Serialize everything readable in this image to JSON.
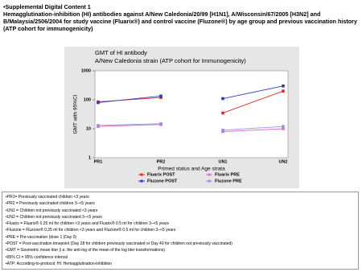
{
  "header": {
    "label": "•Supplemental Digital Content 1",
    "title": "Hemagglutination-inhibition (HI) antibodies against A/New Caledonia/20/99 [H1N1], A/Wisconsin/67/2005 [H3N2] and B/Malaysia/2506/2004 for study vaccine (Fluarix®) and control vaccine (Fluzone®) by age group and previous vaccination history (ATP cohort for immunogenicity)"
  },
  "chart_data": {
    "type": "line",
    "title": "GMT of HI antibody",
    "subtitle": "A/New Caledonia strain (ATP cohort for Immunogenicity)",
    "x_label": "Primed status and Age strata",
    "y_label": "GMT with 95%CI",
    "categories": [
      "PR1",
      "PR2",
      "UN1",
      "UN2"
    ],
    "log_scale": true,
    "ylim": [
      1,
      1000
    ],
    "yticks": [
      1,
      10,
      100,
      1000
    ],
    "series": [
      {
        "name": "Fluarix POST",
        "color": "#e02828",
        "values": [
          85,
          120,
          35,
          200
        ]
      },
      {
        "name": "Fluarix PRE",
        "color": "#e070c8",
        "values": [
          12,
          14,
          8,
          10
        ]
      },
      {
        "name": "Fluzone POST",
        "color": "#2c3cc0",
        "values": [
          80,
          135,
          110,
          300
        ]
      },
      {
        "name": "Fluzone PRE",
        "color": "#9494e0",
        "values": [
          13,
          15,
          9,
          12
        ]
      }
    ]
  },
  "notes": [
    "•PR1= Previously vaccinated children <3 years",
    "•PR2 = Previously vaccinated children 3–<5 years",
    "•UN1 = Children not previously vaccinated <3 years",
    "•UN2 = Children not previously vaccinated 3–<5 years",
    "•Fluarix = Fluarix® 0.25 ml for children <3 years and Fluarix® 0.5 ml for children 3–<5 years",
    "•Fluzone = Fluzone® 0.25 ml for children <3 years and Fluzone® 0.5 ml for children 3–<5 years",
    "•PRE = Pre-vaccination (dose 1 (Day 0)",
    "•POST = Post-vaccination timepoint (Day 28 for children previously vaccinated or Day 49 for children not previously vaccinated)",
    "•GMT = Geometric mean titer (i.e. the anti-log of the mean of the log titer transformations)",
    "•95% CI = 95% confidence interval",
    "•ATP: According-to-protocol; HI: Hemagglutination-inhibition"
  ]
}
